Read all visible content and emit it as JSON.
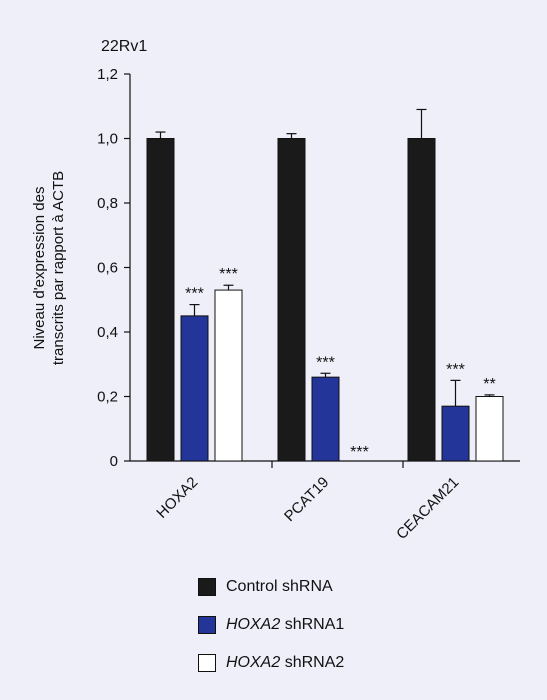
{
  "chart_data": {
    "type": "bar",
    "title": "22Rv1",
    "ylabel_line1": "Niveau d'expression des",
    "ylabel_line2": "transcrits par rapport à ACTB",
    "ylim": [
      0,
      1.2
    ],
    "yticks": [
      "0",
      "0,2",
      "0,4",
      "0,6",
      "0,8",
      "1,0",
      "1,2"
    ],
    "ytick_values": [
      0,
      0.2,
      0.4,
      0.6,
      0.8,
      1.0,
      1.2
    ],
    "categories": [
      "HOXA2",
      "PCAT19",
      "CEACAM21"
    ],
    "series": [
      {
        "name": "Control shRNA",
        "color": "#1a1a1a",
        "values": [
          1.0,
          1.0,
          1.0
        ],
        "errors": [
          0.02,
          0.015,
          0.09
        ],
        "sig": [
          "",
          "",
          ""
        ]
      },
      {
        "name": "HOXA2 shRNA1",
        "color": "#24359a",
        "values": [
          0.45,
          0.26,
          0.17
        ],
        "errors": [
          0.035,
          0.012,
          0.08
        ],
        "sig": [
          "***",
          "***",
          "***"
        ]
      },
      {
        "name": "HOXA2 shRNA2",
        "color": "#ffffff",
        "values": [
          0.53,
          0.0,
          0.2
        ],
        "errors": [
          0.015,
          0.0,
          0.005
        ],
        "sig": [
          "***",
          "***",
          "**"
        ]
      }
    ],
    "grid": false,
    "legend_position": "bottom"
  },
  "legend": [
    {
      "italic": "",
      "text": "Control shRNA",
      "color": "#1a1a1a"
    },
    {
      "italic": "HOXA2",
      "text": " shRNA1",
      "color": "#24359a"
    },
    {
      "italic": "HOXA2",
      "text": " shRNA2",
      "color": "#ffffff"
    }
  ]
}
